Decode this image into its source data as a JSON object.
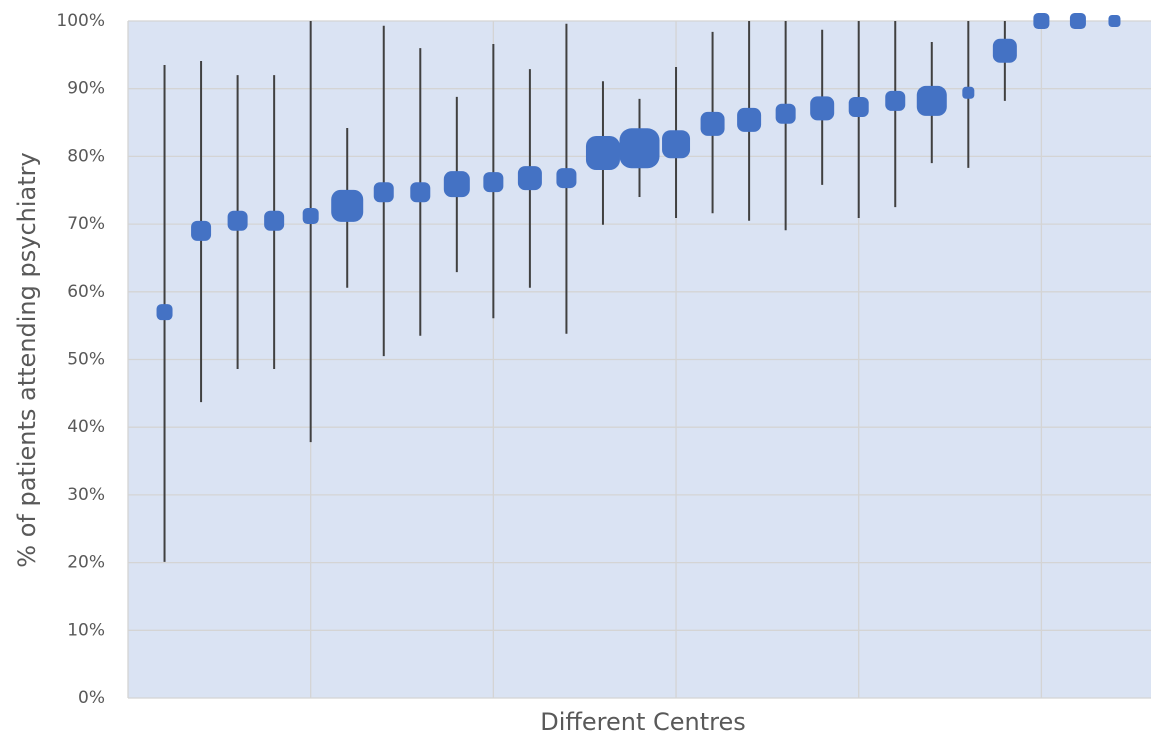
{
  "chart_data": {
    "type": "scatter",
    "x_label": "Different Centres",
    "y_label": "% of patients attending psychiatry",
    "color": "#4472c4",
    "error_color": "#404040",
    "x": [
      1,
      2,
      3,
      4,
      5,
      6,
      7,
      8,
      9,
      10,
      11,
      12,
      13,
      14,
      15,
      16,
      17,
      18,
      19,
      20,
      21,
      22,
      23,
      24,
      25,
      26,
      27
    ],
    "values": [
      57.0,
      69.0,
      70.5,
      70.5,
      71.2,
      72.7,
      74.7,
      74.7,
      75.9,
      76.2,
      76.8,
      76.8,
      80.5,
      81.2,
      81.8,
      84.8,
      85.4,
      86.3,
      87.1,
      87.3,
      88.2,
      88.2,
      89.4,
      95.6,
      100,
      100,
      100
    ],
    "lower": [
      20.1,
      43.7,
      48.6,
      48.6,
      37.8,
      60.6,
      50.5,
      53.5,
      62.9,
      56.1,
      60.6,
      53.8,
      69.9,
      74.0,
      70.9,
      71.6,
      70.5,
      69.1,
      75.8,
      70.9,
      72.5,
      79.0,
      78.3,
      88.2,
      100,
      100,
      100
    ],
    "upper": [
      93.5,
      94.1,
      92.0,
      92.0,
      100,
      84.2,
      99.3,
      96.0,
      88.8,
      96.6,
      92.9,
      99.6,
      91.1,
      88.5,
      93.2,
      98.4,
      100,
      100,
      98.7,
      100,
      100,
      96.9,
      100,
      100,
      100,
      100,
      100
    ],
    "sizes": [
      16,
      20,
      20,
      20,
      16,
      32,
      20,
      20,
      26,
      20,
      24,
      20,
      34,
      40,
      28,
      24,
      24,
      20,
      24,
      20,
      20,
      30,
      12,
      24,
      16,
      16,
      12
    ],
    "xlim": [
      0,
      28
    ],
    "xticks": [
      0,
      5,
      10,
      15,
      20,
      25
    ],
    "ylim": [
      0,
      100
    ],
    "yticks": [
      {
        "value": 0,
        "label": "0%"
      },
      {
        "value": 10,
        "label": "10%"
      },
      {
        "value": 20,
        "label": "20%"
      },
      {
        "value": 30,
        "label": "30%"
      },
      {
        "value": 40,
        "label": "40%"
      },
      {
        "value": 50,
        "label": "50%"
      },
      {
        "value": 60,
        "label": "60%"
      },
      {
        "value": 70,
        "label": "70%"
      },
      {
        "value": 80,
        "label": "80%"
      },
      {
        "value": 90,
        "label": "90%"
      },
      {
        "value": 100,
        "label": "100%"
      }
    ],
    "grid": true
  }
}
